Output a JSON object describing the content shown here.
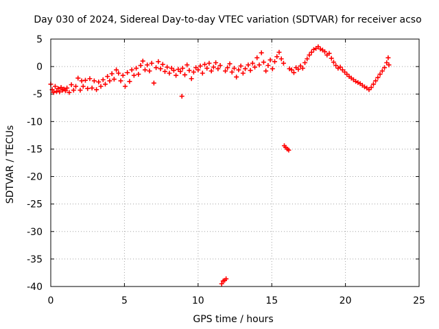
{
  "chart_data": {
    "type": "scatter",
    "title": "Day 030 of 2024, Sidereal Day-to-day VTEC variation (SDTVAR) for receiver acso",
    "xlabel": "GPS time / hours",
    "ylabel": "SDTVAR / TECUs",
    "xlim": [
      0,
      25
    ],
    "ylim": [
      -40,
      5
    ],
    "x_ticks": [
      0,
      5,
      10,
      15,
      20,
      25
    ],
    "y_ticks": [
      5,
      0,
      -5,
      -10,
      -15,
      -20,
      -25,
      -30,
      -35,
      -40
    ],
    "grid": true,
    "marker": "plus",
    "marker_color": "#ff0000",
    "series": [
      {
        "name": "SDTVAR",
        "points": [
          [
            0.0,
            -3.2
          ],
          [
            0.1,
            -4.2
          ],
          [
            0.2,
            -4.7
          ],
          [
            0.3,
            -3.6
          ],
          [
            0.4,
            -4.5
          ],
          [
            0.5,
            -4.0
          ],
          [
            0.6,
            -4.6
          ],
          [
            0.7,
            -3.8
          ],
          [
            0.8,
            -4.3
          ],
          [
            0.9,
            -4.1
          ],
          [
            1.0,
            -4.4
          ],
          [
            1.1,
            -3.9
          ],
          [
            1.25,
            -4.7
          ],
          [
            1.4,
            -3.3
          ],
          [
            1.55,
            -4.3
          ],
          [
            1.7,
            -3.6
          ],
          [
            1.85,
            -2.1
          ],
          [
            2.0,
            -4.3
          ],
          [
            2.1,
            -2.6
          ],
          [
            2.2,
            -3.6
          ],
          [
            2.35,
            -2.5
          ],
          [
            2.5,
            -4.0
          ],
          [
            2.65,
            -2.2
          ],
          [
            2.8,
            -3.9
          ],
          [
            2.95,
            -2.6
          ],
          [
            3.1,
            -4.2
          ],
          [
            3.25,
            -2.8
          ],
          [
            3.4,
            -3.6
          ],
          [
            3.55,
            -2.4
          ],
          [
            3.7,
            -3.2
          ],
          [
            3.85,
            -1.8
          ],
          [
            4.0,
            -2.6
          ],
          [
            4.15,
            -1.3
          ],
          [
            4.3,
            -2.3
          ],
          [
            4.45,
            -0.6
          ],
          [
            4.6,
            -1.2
          ],
          [
            4.75,
            -2.6
          ],
          [
            4.9,
            -1.6
          ],
          [
            5.05,
            -3.6
          ],
          [
            5.2,
            -1.1
          ],
          [
            5.35,
            -2.7
          ],
          [
            5.5,
            -0.6
          ],
          [
            5.65,
            -1.6
          ],
          [
            5.8,
            -0.3
          ],
          [
            5.95,
            -1.4
          ],
          [
            6.1,
            0.2
          ],
          [
            6.25,
            1.0
          ],
          [
            6.4,
            -0.6
          ],
          [
            6.55,
            0.3
          ],
          [
            6.7,
            -0.8
          ],
          [
            6.85,
            0.6
          ],
          [
            7.0,
            -3.0
          ],
          [
            7.15,
            -0.2
          ],
          [
            7.3,
            0.9
          ],
          [
            7.45,
            -0.4
          ],
          [
            7.6,
            0.4
          ],
          [
            7.75,
            -0.9
          ],
          [
            7.9,
            -0.1
          ],
          [
            8.05,
            -1.2
          ],
          [
            8.2,
            -0.3
          ],
          [
            8.35,
            -0.7
          ],
          [
            8.5,
            -1.6
          ],
          [
            8.65,
            -0.5
          ],
          [
            8.8,
            -0.9
          ],
          [
            8.9,
            -5.4
          ],
          [
            8.95,
            -0.3
          ],
          [
            9.1,
            -1.5
          ],
          [
            9.25,
            0.3
          ],
          [
            9.4,
            -0.7
          ],
          [
            9.55,
            -2.2
          ],
          [
            9.7,
            -1.0
          ],
          [
            9.85,
            -0.2
          ],
          [
            10.0,
            -0.6
          ],
          [
            10.15,
            0.1
          ],
          [
            10.3,
            -1.2
          ],
          [
            10.45,
            0.4
          ],
          [
            10.6,
            -0.3
          ],
          [
            10.75,
            0.6
          ],
          [
            10.9,
            -0.8
          ],
          [
            11.05,
            -0.1
          ],
          [
            11.2,
            0.7
          ],
          [
            11.35,
            -0.4
          ],
          [
            11.5,
            0.2
          ],
          [
            11.6,
            -39.5
          ],
          [
            11.7,
            -39.0
          ],
          [
            11.8,
            -38.9
          ],
          [
            11.9,
            -38.6
          ],
          [
            11.85,
            -0.8
          ],
          [
            12.0,
            -0.2
          ],
          [
            12.15,
            0.5
          ],
          [
            12.3,
            -1.0
          ],
          [
            12.45,
            -0.3
          ],
          [
            12.6,
            -1.9
          ],
          [
            12.75,
            -0.6
          ],
          [
            12.9,
            0.1
          ],
          [
            13.05,
            -1.2
          ],
          [
            13.2,
            -0.4
          ],
          [
            13.4,
            0.3
          ],
          [
            13.55,
            -0.7
          ],
          [
            13.7,
            0.6
          ],
          [
            13.85,
            -0.1
          ],
          [
            14.0,
            1.6
          ],
          [
            14.15,
            0.3
          ],
          [
            14.3,
            2.5
          ],
          [
            14.45,
            0.8
          ],
          [
            14.6,
            -0.8
          ],
          [
            14.75,
            0.2
          ],
          [
            14.9,
            1.2
          ],
          [
            15.05,
            -0.4
          ],
          [
            15.2,
            0.9
          ],
          [
            15.35,
            1.8
          ],
          [
            15.5,
            2.6
          ],
          [
            15.65,
            1.4
          ],
          [
            15.8,
            0.6
          ],
          [
            15.85,
            -14.4
          ],
          [
            15.95,
            -14.7
          ],
          [
            16.05,
            -15.0
          ],
          [
            16.15,
            -15.2
          ],
          [
            16.2,
            -0.4
          ],
          [
            16.35,
            -0.6
          ],
          [
            16.5,
            -1.1
          ],
          [
            16.65,
            -0.2
          ],
          [
            16.8,
            -0.5
          ],
          [
            16.95,
            0.1
          ],
          [
            17.1,
            -0.3
          ],
          [
            17.25,
            0.7
          ],
          [
            17.4,
            1.4
          ],
          [
            17.55,
            2.1
          ],
          [
            17.7,
            2.6
          ],
          [
            17.85,
            3.1
          ],
          [
            18.0,
            3.3
          ],
          [
            18.15,
            3.6
          ],
          [
            18.3,
            3.2
          ],
          [
            18.45,
            3.0
          ],
          [
            18.6,
            2.7
          ],
          [
            18.75,
            2.1
          ],
          [
            18.9,
            2.4
          ],
          [
            19.05,
            1.5
          ],
          [
            19.2,
            0.8
          ],
          [
            19.35,
            0.2
          ],
          [
            19.5,
            -0.3
          ],
          [
            19.65,
            -0.1
          ],
          [
            19.8,
            -0.6
          ],
          [
            19.95,
            -1.0
          ],
          [
            20.1,
            -1.4
          ],
          [
            20.25,
            -1.8
          ],
          [
            20.4,
            -2.1
          ],
          [
            20.55,
            -2.4
          ],
          [
            20.7,
            -2.7
          ],
          [
            20.85,
            -2.9
          ],
          [
            21.0,
            -3.1
          ],
          [
            21.15,
            -3.4
          ],
          [
            21.3,
            -3.7
          ],
          [
            21.45,
            -3.9
          ],
          [
            21.6,
            -4.2
          ],
          [
            21.75,
            -3.8
          ],
          [
            21.9,
            -3.2
          ],
          [
            22.05,
            -2.6
          ],
          [
            22.2,
            -2.0
          ],
          [
            22.35,
            -1.4
          ],
          [
            22.5,
            -0.8
          ],
          [
            22.65,
            -0.2
          ],
          [
            22.8,
            0.7
          ],
          [
            22.9,
            1.6
          ],
          [
            22.95,
            0.3
          ]
        ]
      }
    ]
  }
}
